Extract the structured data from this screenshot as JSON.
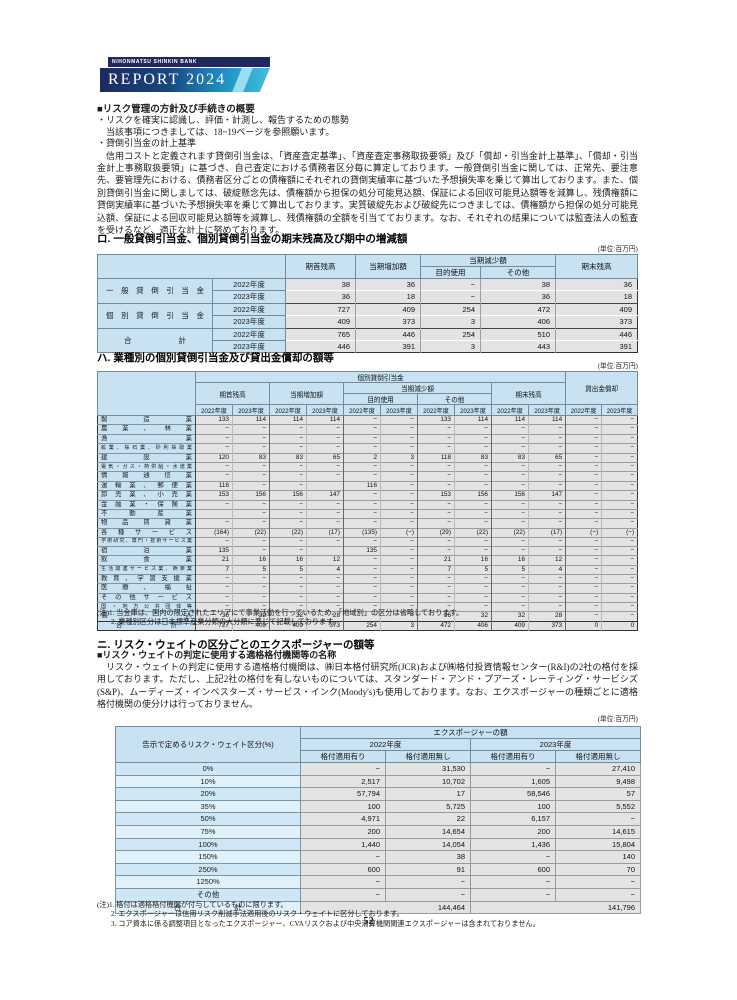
{
  "logo": {
    "bank_name": "NIHONMATSU SHINKIN BANK",
    "report_title": "REPORT 2024"
  },
  "unit_label": "(単位:百万円)",
  "page_number": "52",
  "intro": {
    "heading": "■リスク管理の方針及び手続きの概要",
    "bullet1": "・リスクを確実に認識し、評価・計測し、報告するための態勢",
    "bullet1_sub": "当該事項につきましては、18~19ページを参照願います。",
    "bullet2": "・貸倒引当金の計上基準",
    "paragraph": "信用コストと定義されます貸倒引当金は、「資産査定基準」、「資産査定事務取扱要領」及び「償却・引当金計上基準」、「償却・引当金計上事務取扱要領」に基づき、自己査定における債務者区分毎に算定しております。一般貸倒引当金に関しては、正常先、要注意先、要管理先における、債務者区分ごとの債権額にそれぞれの貸倒実績率に基づいた予想損失率を乗じて算出しております。また、個別貸倒引当金に関しましては、破綻懸念先は、債権額から担保の処分可能見込額、保証による回収可能見込額等を減算し、残債権額に貸倒実績率に基づいた予想損失率を乗じて算出しております。実質破綻先および破綻先につきましては、債権額から担保の処分可能見込額、保証による回収可能見込額等を減算し、残債権額の全額を引当てております。なお、それぞれの結果については監査法人の監査を受けるなど、適正な計上に努めております。"
  },
  "section_ro": {
    "title": "ロ. 一般貸倒引当金、個別貸倒引当金の期末残高及び期中の増減額",
    "table": {
      "col_headers": {
        "beginning": "期首残高",
        "increase": "当期増加額",
        "decrease": "当期減少額",
        "purpose": "目的使用",
        "other": "その他",
        "ending": "期末残高"
      },
      "groups": [
        {
          "label": "一般貸倒引当金",
          "pad": false,
          "rows": [
            {
              "year": "2022年度",
              "values": [
                "38",
                "36",
                "−",
                "38",
                "36"
              ]
            },
            {
              "year": "2023年度",
              "values": [
                "36",
                "18",
                "−",
                "36",
                "18"
              ]
            }
          ]
        },
        {
          "label": "個別貸倒引当金",
          "pad": false,
          "rows": [
            {
              "year": "2022年度",
              "values": [
                "727",
                "409",
                "254",
                "472",
                "409"
              ]
            },
            {
              "year": "2023年度",
              "values": [
                "409",
                "373",
                "3",
                "406",
                "373"
              ]
            }
          ]
        },
        {
          "label": "合 計",
          "pad": true,
          "rows": [
            {
              "year": "2022年度",
              "values": [
                "765",
                "446",
                "254",
                "510",
                "446"
              ]
            },
            {
              "year": "2023年度",
              "values": [
                "446",
                "391",
                "3",
                "443",
                "391"
              ]
            }
          ]
        }
      ]
    }
  },
  "section_ha": {
    "title": "ハ. 業種別の個別貸倒引当金及び貸出金償却の額等",
    "table": {
      "top_individual": "個別貸倒引当金",
      "top_writeoff": "貸出金償却",
      "col_headers": {
        "beginning": "期首残高",
        "increase": "当期増加額",
        "decrease": "当期減少額",
        "purpose": "目的使用",
        "other": "その他",
        "ending": "期末残高"
      },
      "year_2022": "2022年度",
      "year_2023": "2023年度",
      "rows": [
        {
          "label": "製造業",
          "values": [
            "133",
            "114",
            "114",
            "114",
            "−",
            "−",
            "133",
            "114",
            "114",
            "114",
            "−",
            "−"
          ]
        },
        {
          "label": "農業、林業",
          "values": [
            "−",
            "−",
            "−",
            "−",
            "−",
            "−",
            "−",
            "−",
            "−",
            "−",
            "−",
            "−"
          ]
        },
        {
          "label": "漁業",
          "values": [
            "−",
            "−",
            "−",
            "−",
            "−",
            "−",
            "−",
            "−",
            "−",
            "−",
            "−",
            "−"
          ]
        },
        {
          "label": "鉱業、採石業、砂利採取業",
          "lsm": true,
          "values": [
            "−",
            "−",
            "−",
            "−",
            "−",
            "−",
            "−",
            "−",
            "−",
            "−",
            "−",
            "−"
          ]
        },
        {
          "label": "建設業",
          "values": [
            "120",
            "83",
            "83",
            "65",
            "2",
            "3",
            "118",
            "83",
            "83",
            "65",
            "−",
            "−"
          ]
        },
        {
          "label": "電気・ガス・熱供給・水道業",
          "lsm": true,
          "values": [
            "−",
            "−",
            "−",
            "−",
            "−",
            "−",
            "−",
            "−",
            "−",
            "−",
            "−",
            "−"
          ]
        },
        {
          "label": "情報通信業",
          "values": [
            "−",
            "−",
            "−",
            "−",
            "−",
            "−",
            "−",
            "−",
            "−",
            "−",
            "−",
            "−"
          ]
        },
        {
          "label": "運輸業、郵便業",
          "values": [
            "116",
            "−",
            "−",
            "",
            "116",
            "−",
            "−",
            "−",
            "−",
            "−",
            "−",
            "−"
          ]
        },
        {
          "label": "卸売業、小売業",
          "values": [
            "153",
            "156",
            "156",
            "147",
            "−",
            "−",
            "153",
            "156",
            "156",
            "147",
            "−",
            "−"
          ]
        },
        {
          "label": "金融業・保険業",
          "values": [
            "−",
            "−",
            "−",
            "−",
            "−",
            "−",
            "−",
            "−",
            "−",
            "−",
            "−",
            "−"
          ]
        },
        {
          "label": "不動産業",
          "values": [
            "",
            "−",
            "−",
            "−",
            "−",
            "−",
            "−",
            "−",
            "−",
            "−",
            "−",
            "−"
          ]
        },
        {
          "label": "物品賃貸業",
          "values": [
            "−",
            "−",
            "−",
            "−",
            "−",
            "−",
            "−",
            "−",
            "−",
            "−",
            "−",
            "−"
          ]
        },
        {
          "label": "各種サービス",
          "values": [
            "(164)",
            "(22)",
            "(22)",
            "(17)",
            "(135)",
            "(−)",
            "(29)",
            "(22)",
            "(22)",
            "(17)",
            "(−)",
            "(−)"
          ]
        },
        {
          "label": "学術研究、専門・技術サービス業",
          "lsm": true,
          "sm": true,
          "values": [
            "−",
            "−",
            "−",
            "−",
            "−",
            "−",
            "−",
            "−",
            "−",
            "−",
            "−",
            "−"
          ]
        },
        {
          "label": "宿泊業",
          "values": [
            "135",
            "−",
            "−",
            "",
            "135",
            "−",
            "−",
            "−",
            "−",
            "−",
            "−",
            "−"
          ]
        },
        {
          "label": "飲食業",
          "values": [
            "21",
            "16",
            "16",
            "12",
            "−",
            "−",
            "21",
            "16",
            "16",
            "12",
            "−",
            "−"
          ]
        },
        {
          "label": "生活関連サービス業、娯楽業",
          "lsm": true,
          "sm": true,
          "values": [
            "7",
            "5",
            "5",
            "4",
            "−",
            "−",
            "7",
            "5",
            "5",
            "4",
            "−",
            "−"
          ]
        },
        {
          "label": "教育、学習支援業",
          "values": [
            "−",
            "−",
            "−",
            "−",
            "−",
            "−",
            "−",
            "−",
            "−",
            "−",
            "−",
            "−"
          ]
        },
        {
          "label": "医療、福祉",
          "values": [
            "−",
            "−",
            "−",
            "−",
            "−",
            "−",
            "−",
            "−",
            "−",
            "−",
            "−",
            "−"
          ]
        },
        {
          "label": "その他サービス",
          "values": [
            "−",
            "−",
            "−",
            "−",
            "−",
            "−",
            "−",
            "−",
            "−",
            "−",
            "−",
            "−"
          ]
        },
        {
          "label": "国・地方公共団体等",
          "lsm": true,
          "values": [
            "−",
            "−",
            "−",
            "−",
            "−",
            "−",
            "−",
            "−",
            "−",
            "−",
            "−",
            "−"
          ]
        },
        {
          "label": "個人",
          "values": [
            "36",
            "32",
            "32",
            "28",
            "−",
            "−",
            "36",
            "32",
            "32",
            "28",
            "−",
            "−"
          ]
        },
        {
          "label": "合 計",
          "pad": true,
          "tot": true,
          "values": [
            "727",
            "409",
            "409",
            "373",
            "254",
            "3",
            "472",
            "406",
            "409",
            "373",
            "0",
            "0"
          ]
        }
      ]
    },
    "notes": [
      "(注)1. 当金庫は、国内の限定されたエリアにて事業活動を行っているため、「地域別」の区分は省略しております。",
      "2. 業種別区分は日本標準産業分類の大分類に準じて記載しております。"
    ]
  },
  "section_ni": {
    "title": "ニ. リスク・ウェイトの区分ごとのエクスポージャーの額等",
    "subheading": "■リスク・ウェイトの判定に使用する適格格付機関等の名称",
    "paragraph": "リスク・ウェイトの判定に使用する適格格付機関は、㈱日本格付研究所(JCR)および㈱格付投資情報センター(R&I)の2社の格付を採用しております。ただし、上記2社の格付を有しないものについては、スタンダード・アンド・プアーズ・レーティング・サービシズ(S&P)、ムーディーズ・インベスターズ・サービス・インク(Moody's)も使用しております。なお、エクスポージャーの種類ごとに適格格付機関の使分けは行っておりません。",
    "table": {
      "row_header": "告示で定めるリスク・ウェイト区分(%)",
      "top_header": "エクスポージャーの額",
      "years": [
        "2022年度",
        "2023年度"
      ],
      "sub_headers": [
        "格付適用有り",
        "格付適用無し"
      ],
      "rows": [
        {
          "label": "0%",
          "values": [
            "−",
            "31,530",
            "−",
            "27,410"
          ]
        },
        {
          "label": "10%",
          "values": [
            "2,517",
            "10,702",
            "1,605",
            "9,498"
          ]
        },
        {
          "label": "20%",
          "values": [
            "57,794",
            "17",
            "58,546",
            "57"
          ]
        },
        {
          "label": "35%",
          "values": [
            "100",
            "5,725",
            "100",
            "5,552"
          ]
        },
        {
          "label": "50%",
          "values": [
            "4,971",
            "22",
            "6,157",
            "−"
          ]
        },
        {
          "label": "75%",
          "values": [
            "200",
            "14,654",
            "200",
            "14,615"
          ]
        },
        {
          "label": "100%",
          "values": [
            "1,440",
            "14,054",
            "1,436",
            "15,804"
          ]
        },
        {
          "label": "150%",
          "values": [
            "−",
            "38",
            "−",
            "140"
          ]
        },
        {
          "label": "250%",
          "values": [
            "600",
            "91",
            "600",
            "70"
          ]
        },
        {
          "label": "1250%",
          "values": [
            "−",
            "−",
            "−",
            "−"
          ]
        },
        {
          "label": "その他",
          "values": [
            "−",
            "−",
            "−",
            "−"
          ]
        }
      ],
      "total_row": {
        "label": "合 計",
        "values": [
          "144,464",
          "141,796"
        ]
      }
    },
    "notes": [
      "(注)1. 格付は適格格付機関が付与しているものに限ります。",
      "2. エクスポージャーは信用リスク削減手法適用後のリスク・ウェイトに区分しております。",
      "3. コア資本に係る調整項目となったエクスポージャー、CVAリスクおよび中央清算機関関連エクスポージャーは含まれておりません。"
    ]
  }
}
